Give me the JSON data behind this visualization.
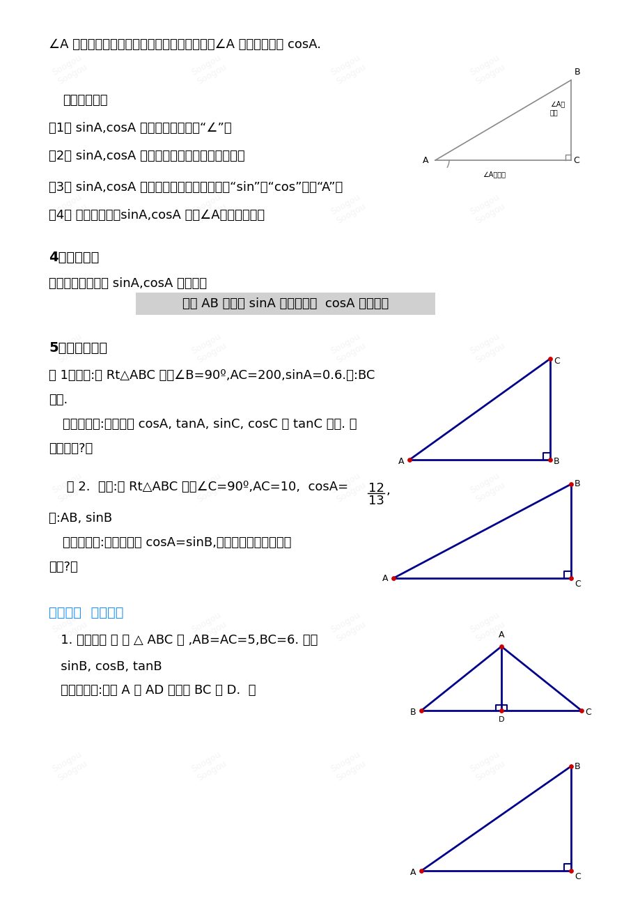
{
  "bg_color": "#ffffff",
  "text_color": "#000000",
  "blue_color": "#0000cd",
  "highlight_bg": "#d3d3d3",
  "diagram_line_color": "#00008B",
  "dot_color": "#cc0000",
  "section_title_color": "#1e90ff",
  "watermark_color": "#e8e8f0",
  "line1": "∠A 的邻边与斜边的比也随之确定，这个比叫做∠A 的余弦。记作 cosA.",
  "notice_title": "注意的问题：",
  "notice1": "（1） sinA,cosA 中常省去角的符号“∠”。",
  "notice2": "（2） sinA,cosA 没有单位，它表示一个比値。。",
  "notice3": "（3） sinA,cosA 是一个完整的符号，不表示“sin”，“cos”乘以“A”。",
  "notice4": "（4） 在初中阶段，sinA,cosA 中，∠A是一个锐角。",
  "sec4_title": "4、议一议：",
  "sec4_body": "梯子的倒斜程度与 sinA,cosA 的关系：",
  "sec4_highlight": "梯子 AB 越陡， sinA 的値越大，  cosA 的値越小",
  "sec5_title": "5、例题分析：",
  "ex1_text": "例 1：如图:在 Rt△ABC 中，∠B=90º,AC=200,sinA=0.6.求:BC",
  "ex1_text2": "的長.",
  "ex1_note": "（老师期望:请你求出 cosA, tanA, sinC, cosC 和 tanC 的値. 你",
  "ex1_note2": "敌应战吗?）",
  "ex2_text": " 例 2.  如图:在 Rt△ABC 中，∠C=90º,AC=10,  cosA=",
  "ex2_frac_num": "12",
  "ex2_frac_den": "13",
  "ex2_text2": ",",
  "ex2_text3": "求:AB, sinB",
  "ex2_note": "（老师期望:注意到这里 cosA=sinB,其中有没有什么内有的",
  "ex2_note2": "关系?）",
  "sec3_title": "第三环节  随堂练习",
  "ex3_text": "   1. 如图：在 等 腰 △ ABC 中 ,AB=AC=5,BC=6. 求：",
  "ex3_text2": "   sinB, cosB, tanB",
  "ex3_note": "   （老师提示:过点 A 作 AD 垂直于 BC 于 D.  ）"
}
